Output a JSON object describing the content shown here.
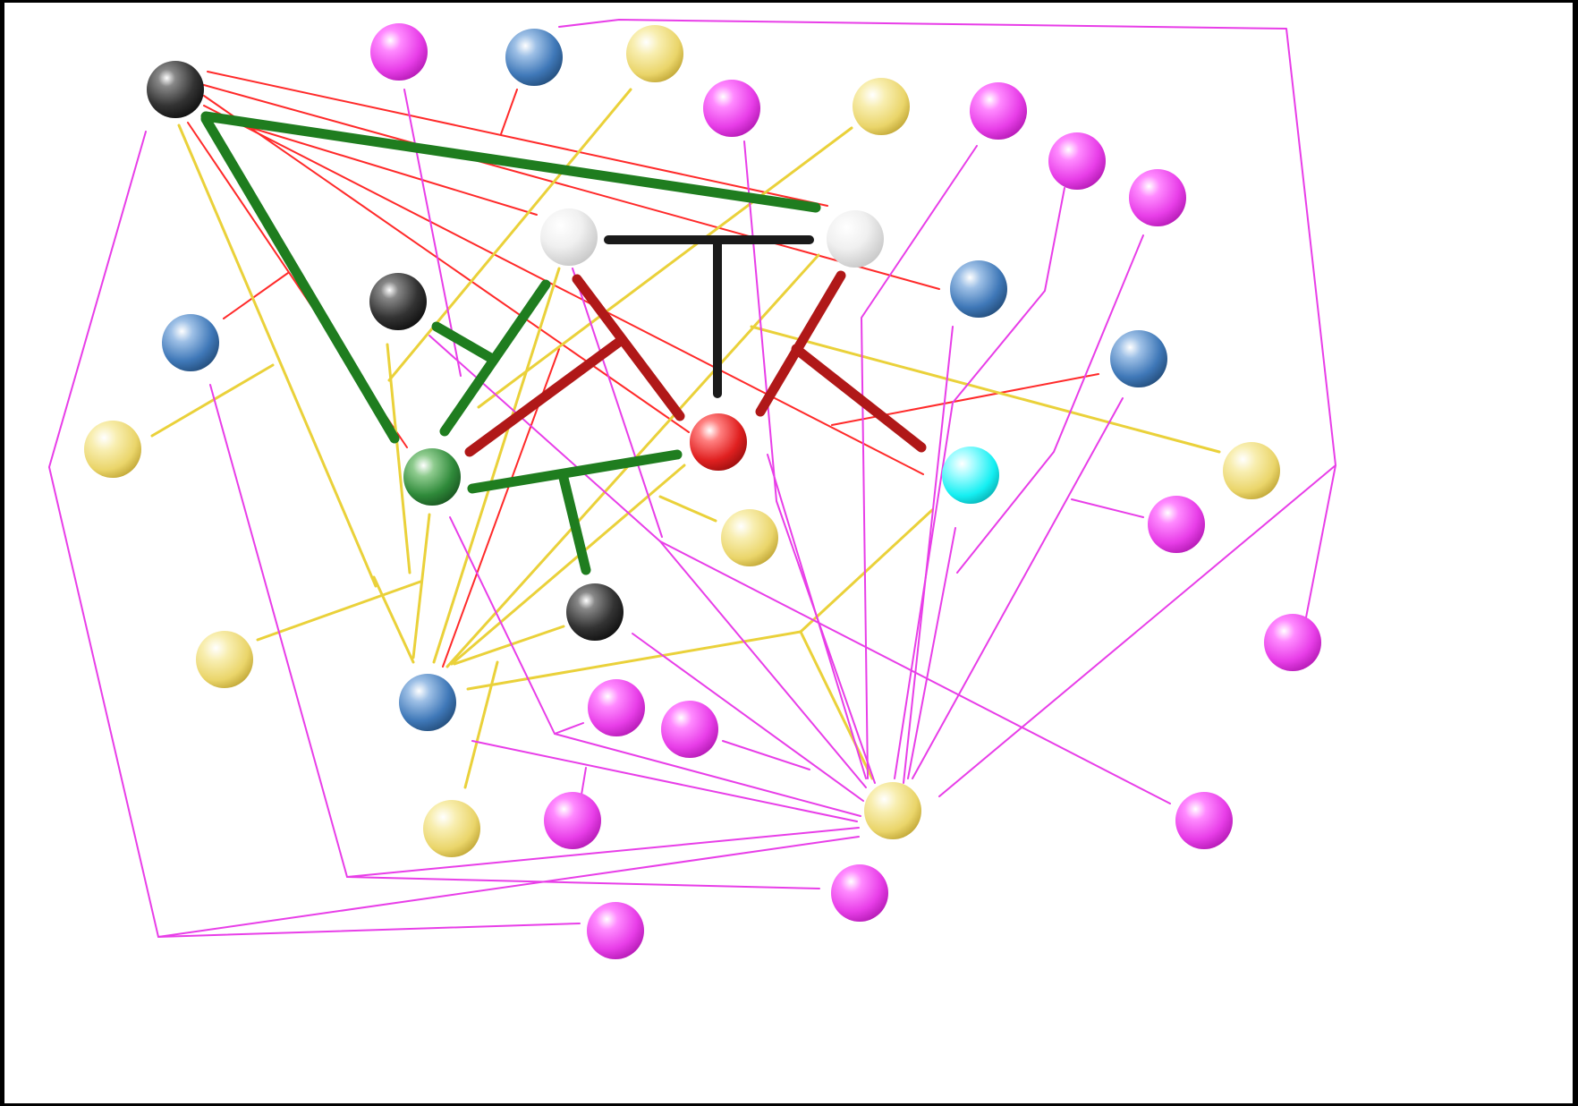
{
  "palette": {
    "magenta": "#e83ee8",
    "blue": "#3f78b8",
    "yellow": "#ead56a",
    "black": "#222222",
    "white": "#e8e8e8",
    "green": "#2f8a3a",
    "red": "#e02020",
    "cyan": "#15eff2",
    "line_red": "#ff2a2a",
    "line_yellow": "#ead13a",
    "line_magenta": "#e83ee8",
    "bond_green": "#1f7d1f",
    "bond_darkred": "#b01818",
    "bond_black": "#1a1a1a"
  },
  "nodes": [
    {
      "color": "black"
    },
    {
      "color": "magenta"
    },
    {
      "color": "blue"
    },
    {
      "color": "yellow"
    },
    {
      "color": "magenta"
    },
    {
      "color": "yellow"
    },
    {
      "color": "magenta"
    },
    {
      "color": "magenta"
    },
    {
      "color": "magenta"
    },
    {
      "color": "white"
    },
    {
      "color": "white"
    },
    {
      "color": "blue"
    },
    {
      "color": "black"
    },
    {
      "color": "blue"
    },
    {
      "color": "blue"
    },
    {
      "color": "yellow"
    },
    {
      "color": "green"
    },
    {
      "color": "red"
    },
    {
      "color": "cyan"
    },
    {
      "color": "yellow"
    },
    {
      "color": "yellow"
    },
    {
      "color": "magenta"
    },
    {
      "color": "black"
    },
    {
      "color": "yellow"
    },
    {
      "color": "magenta"
    },
    {
      "color": "blue"
    },
    {
      "color": "magenta"
    },
    {
      "color": "magenta"
    },
    {
      "color": "yellow"
    },
    {
      "color": "yellow"
    },
    {
      "color": "magenta"
    },
    {
      "color": "magenta"
    },
    {
      "color": "magenta"
    },
    {
      "color": "magenta"
    }
  ]
}
